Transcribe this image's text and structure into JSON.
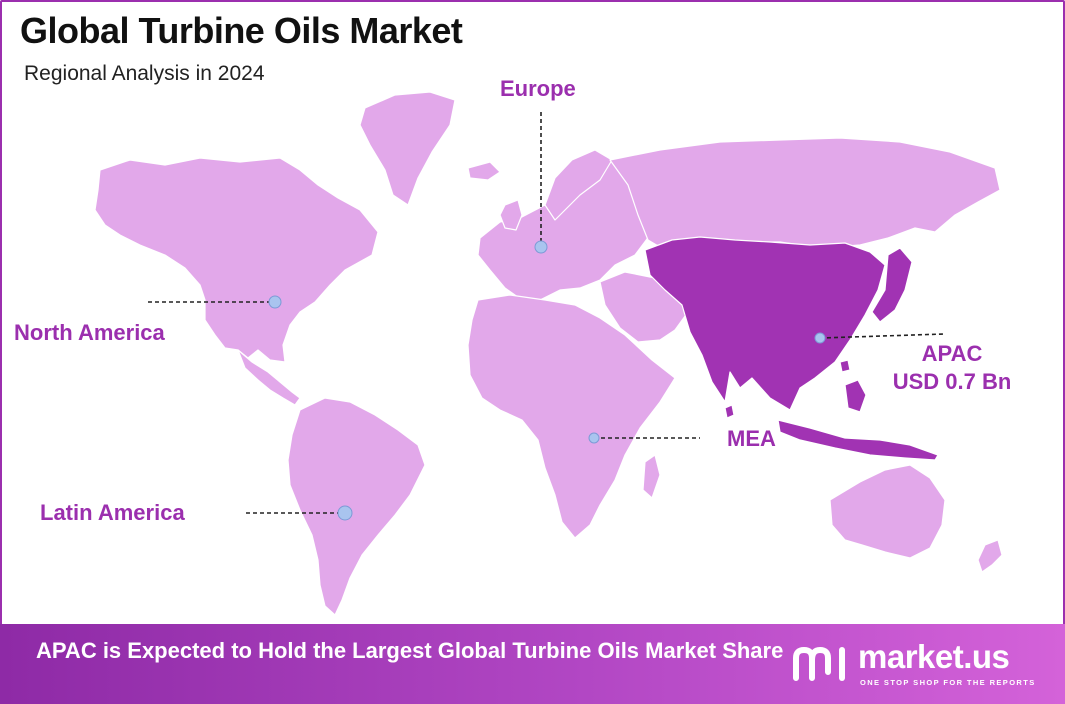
{
  "header": {
    "title": "Global Turbine Oils Market",
    "subtitle": "Regional Analysis in 2024"
  },
  "map": {
    "regions": [
      {
        "id": "north-america",
        "label": "North America",
        "highlighted": false
      },
      {
        "id": "europe",
        "label": "Europe",
        "highlighted": false
      },
      {
        "id": "apac",
        "label": "APAC",
        "value": "USD 0.7 Bn",
        "highlighted": true
      },
      {
        "id": "mea",
        "label": "MEA",
        "highlighted": false
      },
      {
        "id": "latin-america",
        "label": "Latin America",
        "highlighted": false
      }
    ],
    "colors": {
      "land": "#e2a8ea",
      "highlight": "#a133b3",
      "label": "#9b2fae",
      "marker": "#a9c4ef",
      "border": "#9b2fae"
    }
  },
  "footer": {
    "headline": "APAC is Expected to Hold the Largest Global Turbine Oils Market Share",
    "brand": "market.us",
    "tagline": "ONE STOP SHOP FOR THE REPORTS"
  }
}
